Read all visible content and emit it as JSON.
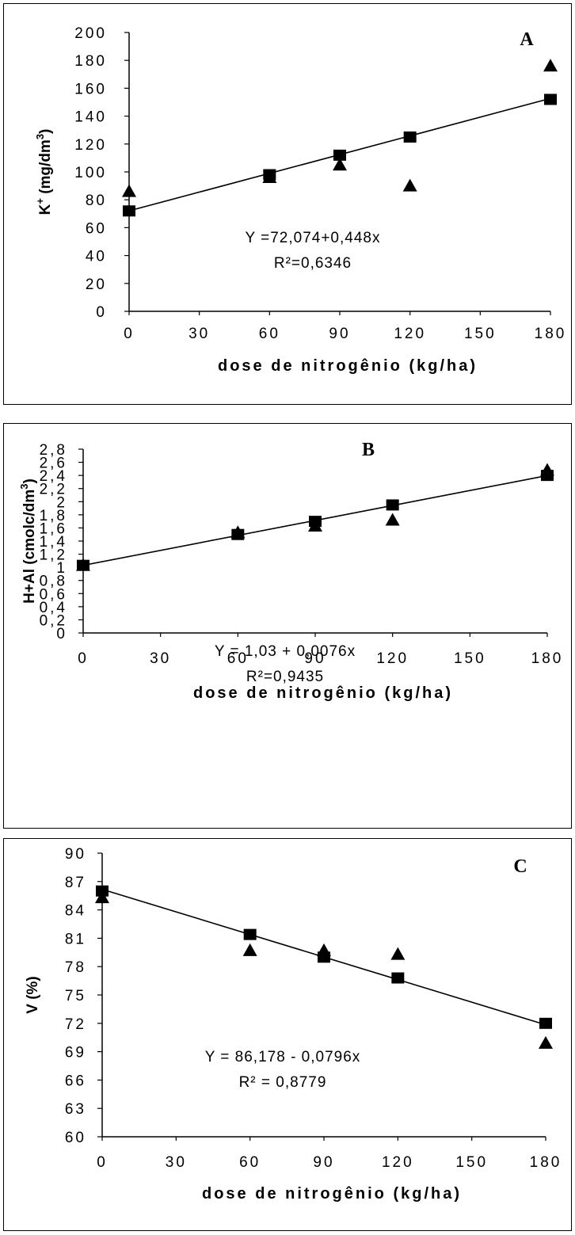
{
  "chart_data": [
    {
      "type": "scatter",
      "panel_label": "A",
      "xlabel": "dose de nitrogênio (kg/ha)",
      "ylabel": "K+ (mg/dm3)",
      "ylabel_base": "K",
      "ylabel_sup": "+",
      "ylabel_unit_prefix": " (mg/dm",
      "ylabel_unit_sup": "3",
      "ylabel_unit_suffix": ")",
      "xlim": [
        0,
        180
      ],
      "ylim": [
        0,
        200
      ],
      "xticks": [
        "0",
        "30",
        "60",
        "90",
        "120",
        "150",
        "180"
      ],
      "yticks": [
        "0",
        "20",
        "40",
        "60",
        "80",
        "100",
        "120",
        "140",
        "160",
        "180",
        "200"
      ],
      "series": [
        {
          "marker": "square",
          "x": [
            0,
            60,
            90,
            120,
            180
          ],
          "y": [
            72,
            98,
            112,
            125,
            152
          ]
        },
        {
          "marker": "triangle",
          "x": [
            0,
            60,
            90,
            120,
            180
          ],
          "y": [
            86,
            96,
            105,
            90,
            176
          ]
        }
      ],
      "fit": {
        "intercept": 72.074,
        "slope": 0.448
      },
      "equation": "Y =72,074+0,448x",
      "r2_text": "R²=0,6346"
    },
    {
      "type": "scatter",
      "panel_label": "B",
      "xlabel": "dose de nitrogênio (kg/ha)",
      "ylabel": "H+Al (cmolc/dm3)",
      "ylabel_base": "H+Al (cmolc/dm",
      "ylabel_sup": "3",
      "ylabel_unit_prefix": ")",
      "ylabel_unit_sup": "",
      "ylabel_unit_suffix": "",
      "xlim": [
        0,
        180
      ],
      "ylim": [
        0,
        2.8
      ],
      "xticks": [
        "0",
        "30",
        "60",
        "90",
        "120",
        "150",
        "180"
      ],
      "yticks": [
        "0",
        "0,2",
        "0,4",
        "0,6",
        "0,8",
        "1",
        "1,2",
        "1,4",
        "1,6",
        "1,8",
        "2",
        "2,2",
        "2,4",
        "2,6",
        "2,8"
      ],
      "series": [
        {
          "marker": "square",
          "x": [
            0,
            60,
            90,
            120,
            180
          ],
          "y": [
            1.03,
            1.5,
            1.7,
            1.95,
            2.4
          ]
        },
        {
          "marker": "triangle",
          "x": [
            0,
            60,
            90,
            120,
            180
          ],
          "y": [
            1.03,
            1.53,
            1.63,
            1.72,
            2.48
          ]
        }
      ],
      "fit": {
        "intercept": 1.03,
        "slope": 0.0076
      },
      "equation": "Y = 1,03 + 0,0076x",
      "r2_text": "R²=0,9435"
    },
    {
      "type": "scatter",
      "panel_label": "C",
      "xlabel": "dose de nitrogênio (kg/ha)",
      "ylabel": "V (%)",
      "ylabel_base": "V (%)",
      "ylabel_sup": "",
      "ylabel_unit_prefix": "",
      "ylabel_unit_sup": "",
      "ylabel_unit_suffix": "",
      "xlim": [
        0,
        180
      ],
      "ylim": [
        60,
        90
      ],
      "xticks": [
        "0",
        "30",
        "60",
        "90",
        "120",
        "150",
        "180"
      ],
      "yticks": [
        "60",
        "63",
        "66",
        "69",
        "72",
        "75",
        "78",
        "81",
        "84",
        "87",
        "90"
      ],
      "series": [
        {
          "marker": "square",
          "x": [
            0,
            60,
            90,
            120,
            180
          ],
          "y": [
            86,
            81.4,
            79,
            76.8,
            72
          ]
        },
        {
          "marker": "triangle",
          "x": [
            0,
            60,
            90,
            120,
            180
          ],
          "y": [
            85.3,
            79.7,
            79.7,
            79.3,
            69.9
          ]
        }
      ],
      "fit": {
        "intercept": 86.178,
        "slope": -0.0796
      },
      "equation": "Y  = 86,178 - 0,0796x",
      "r2_text": "R² = 0,8779"
    }
  ]
}
